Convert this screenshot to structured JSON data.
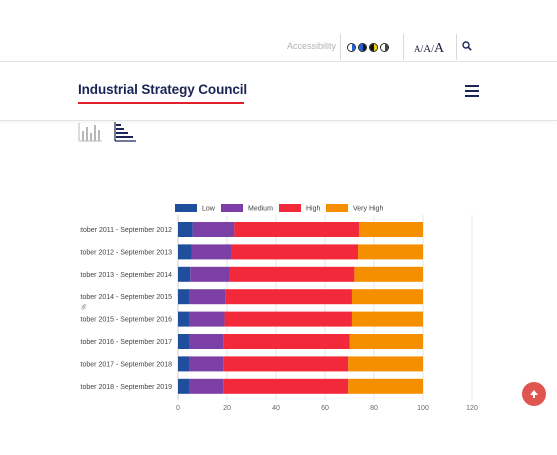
{
  "utility": {
    "accessibility_label": "Accessibility",
    "font_sizes": [
      "A",
      "A",
      "A"
    ],
    "font_separator": "/",
    "contrast_icons": [
      "contrast-blue-icon",
      "contrast-navy-icon",
      "contrast-yellow-icon",
      "contrast-gray-icon"
    ]
  },
  "header": {
    "brand": "Industrial Strategy Council",
    "brand_color": "#1b2456",
    "accent_color": "#e0202d"
  },
  "icons": {
    "search": "search-icon",
    "menu": "hamburger-menu-icon",
    "column_view": "column-chart-icon",
    "bar_view": "bar-chart-icon",
    "scroll_top": "arrow-up-icon"
  },
  "chart_data": {
    "type": "bar",
    "orientation": "horizontal",
    "stacked": true,
    "categories": [
      "October 2011 - September 2012",
      "October 2012 - September 2013",
      "October 2013 - September 2014",
      "October 2014 - September 2015",
      "October 2015 - September 2016",
      "October 2016 - September 2017",
      "October 2017 - September 2018",
      "October 2018 - September 2019"
    ],
    "series": [
      {
        "name": "Low",
        "color": "#1f4e9c",
        "values": [
          6.0,
          5.5,
          5.0,
          4.5,
          4.5,
          4.5,
          4.5,
          4.5
        ]
      },
      {
        "name": "Medium",
        "color": "#7b3fa5",
        "values": [
          17.0,
          16.5,
          16.0,
          15.0,
          14.5,
          14.0,
          14.0,
          14.0
        ]
      },
      {
        "name": "High",
        "color": "#f2283b",
        "values": [
          51.0,
          51.5,
          51.0,
          51.5,
          52.0,
          51.5,
          51.0,
          51.0
        ]
      },
      {
        "name": "Very High",
        "color": "#f68f00",
        "values": [
          26.0,
          26.5,
          28.0,
          29.0,
          29.0,
          30.0,
          30.5,
          30.5
        ]
      }
    ],
    "xlim": [
      0,
      120
    ],
    "xticks": [
      "0",
      "20",
      "40",
      "60",
      "80",
      "100",
      "120"
    ],
    "ylabel": "%",
    "legend_position": "top",
    "grid": true
  }
}
